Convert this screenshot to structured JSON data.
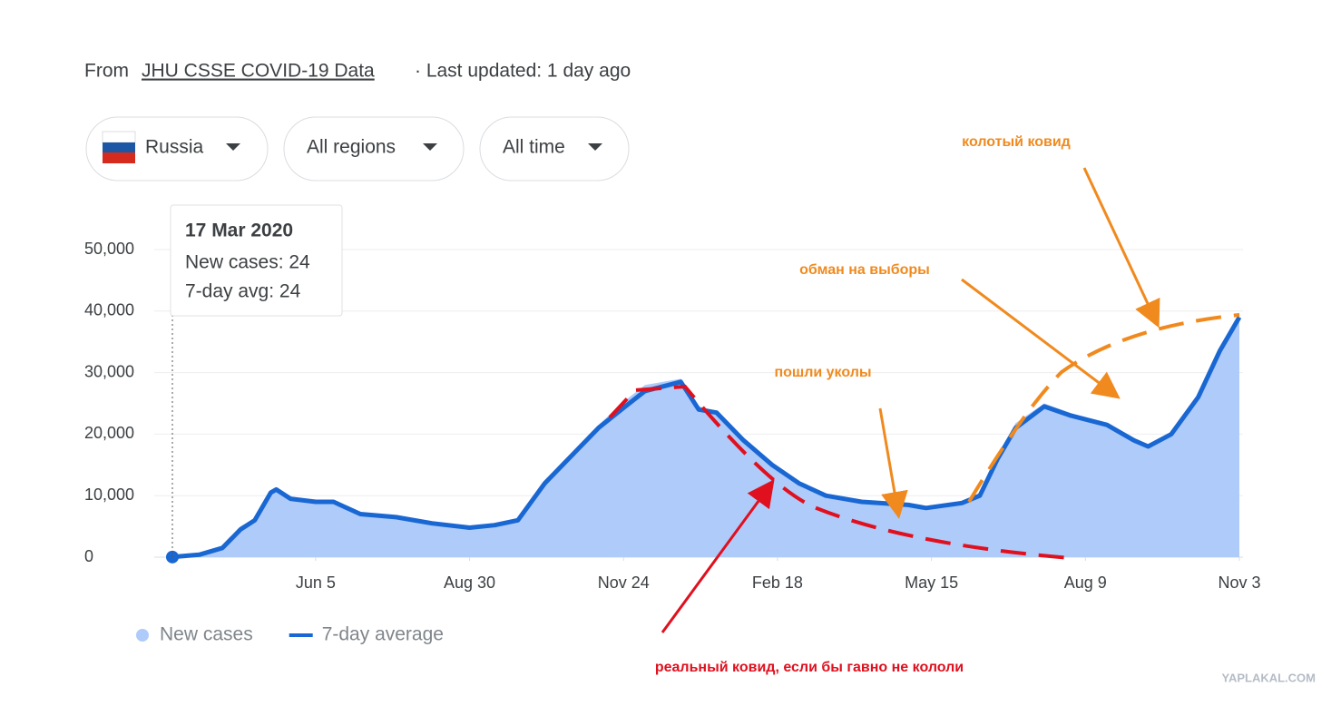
{
  "header": {
    "prefix": "From",
    "source": "JHU CSSE COVID-19 Data",
    "updated": "· Last updated: 1 day ago"
  },
  "filters": [
    "Russia",
    "All regions",
    "All time"
  ],
  "chart_data": {
    "type": "line",
    "x": [
      0,
      15,
      28,
      38,
      46,
      55,
      58,
      66,
      80,
      90,
      105,
      125,
      145,
      166,
      180,
      193,
      208,
      223,
      238,
      253,
      264,
      284,
      294,
      304,
      319,
      335,
      350,
      365,
      385,
      411,
      421,
      441,
      451,
      461,
      471,
      487,
      502,
      522,
      537,
      545,
      558,
      573,
      585,
      596
    ],
    "series": [
      {
        "name": "New cases",
        "kind": "area",
        "color": "#aecbfa",
        "values": [
          24,
          450,
          1700,
          5000,
          6300,
          10800,
          11300,
          9800,
          9200,
          9100,
          7200,
          6600,
          5600,
          4900,
          5400,
          6300,
          12500,
          17000,
          21500,
          25500,
          28000,
          29000,
          24500,
          23800,
          19300,
          15200,
          12200,
          10200,
          9300,
          8700,
          8200,
          9000,
          10500,
          16500,
          21800,
          25000,
          23400,
          21800,
          19300,
          18200,
          20400,
          26600,
          34200,
          39800
        ]
      },
      {
        "name": "7-day average",
        "kind": "line",
        "color": "#1967d2",
        "values": [
          24,
          400,
          1500,
          4500,
          6000,
          10500,
          11000,
          9500,
          9000,
          9000,
          7000,
          6500,
          5500,
          4800,
          5200,
          6000,
          12000,
          16500,
          21000,
          24500,
          27000,
          28500,
          24000,
          23500,
          19000,
          15000,
          12000,
          10000,
          9000,
          8500,
          8000,
          8800,
          10000,
          16000,
          21000,
          24500,
          23000,
          21500,
          19000,
          18000,
          20000,
          26000,
          33500,
          39000
        ]
      }
    ],
    "xlim": [
      0,
      596
    ],
    "xticks": [
      {
        "value": 80,
        "label": "Jun 5"
      },
      {
        "value": 166,
        "label": "Aug 30"
      },
      {
        "value": 252,
        "label": "Nov 24"
      },
      {
        "value": 338,
        "label": "Feb 18"
      },
      {
        "value": 424,
        "label": "May 15"
      },
      {
        "value": 510,
        "label": "Aug 9"
      },
      {
        "value": 596,
        "label": "Nov 3"
      }
    ],
    "ylim": [
      0,
      50000
    ],
    "yticks": [
      0,
      {
        "value": 10000,
        "label": "10,000"
      },
      {
        "value": 20000,
        "label": "20,000"
      },
      {
        "value": 30000,
        "label": "30,000"
      },
      {
        "value": 40000,
        "label": "40,000"
      },
      {
        "value": 50000,
        "label": "50,000"
      }
    ],
    "grid": true
  },
  "tooltip": {
    "date": "17 Mar 2020",
    "new_cases": "New cases: 24",
    "avg": "7-day avg: 24"
  },
  "annotations": [
    "колотый ковид",
    "обман на выборы",
    "пошли уколы",
    "реальный ковид, если бы гавно не кололи"
  ],
  "watermark": "YAPLAKAL.COM"
}
